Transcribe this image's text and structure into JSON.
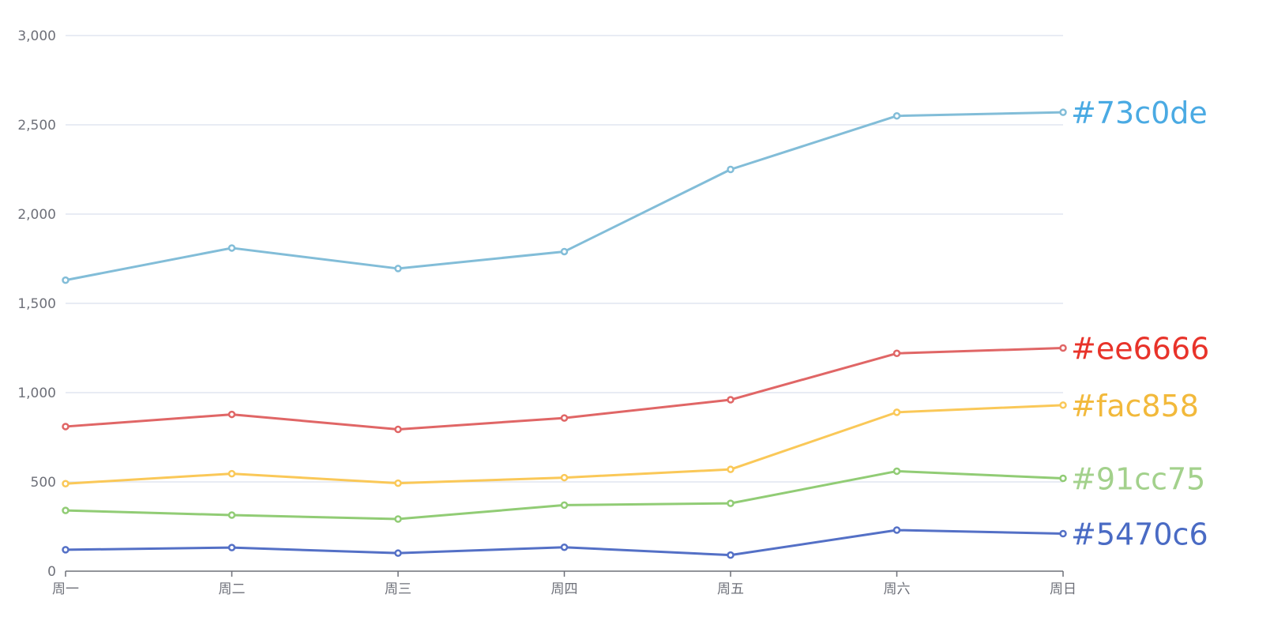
{
  "chart_data": {
    "type": "line",
    "title": "",
    "xlabel": "",
    "ylabel": "",
    "categories": [
      "周一",
      "周二",
      "周三",
      "周四",
      "周五",
      "周六",
      "周日"
    ],
    "ylim": [
      0,
      3000
    ],
    "yticks": [
      "0",
      "500",
      "1,000",
      "1,500",
      "2,000",
      "2,500",
      "3,000"
    ],
    "grid": true,
    "legend": "none",
    "series": [
      {
        "label": "#5470c6",
        "color": "#5470c6",
        "label_color": "#4a6bc4",
        "values": [
          120,
          132,
          101,
          134,
          90,
          230,
          210
        ]
      },
      {
        "label": "#91cc75",
        "color": "#91cc75",
        "label_color": "#a3d18c",
        "values": [
          340,
          314,
          292,
          370,
          380,
          560,
          520
        ]
      },
      {
        "label": "#fac858",
        "color": "#fac858",
        "label_color": "#f2b93b",
        "values": [
          490,
          546,
          493,
          524,
          570,
          890,
          930
        ]
      },
      {
        "label": "#ee6666",
        "color": "#e06666",
        "label_color": "#e8332a",
        "values": [
          810,
          878,
          794,
          858,
          960,
          1220,
          1250
        ]
      },
      {
        "label": "#73c0de",
        "color": "#82bdd8",
        "label_color": "#4aaae3",
        "values": [
          1630,
          1810,
          1695,
          1790,
          2250,
          2550,
          2570
        ]
      }
    ]
  }
}
